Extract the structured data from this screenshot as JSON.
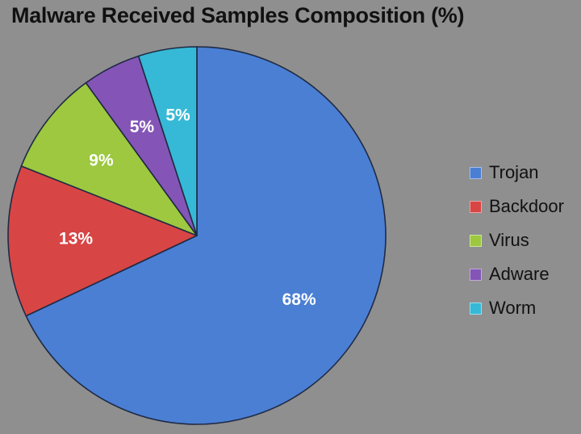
{
  "chart_data": {
    "type": "pie",
    "title": "Malware Received Samples Composition (%)",
    "categories": [
      "Trojan",
      "Backdoor",
      "Virus",
      "Adware",
      "Worm"
    ],
    "values": [
      68,
      13,
      9,
      5,
      5
    ],
    "labels": [
      "68%",
      "13%",
      "9%",
      "5%",
      "5%"
    ],
    "colors": [
      "#4a7fd4",
      "#d84545",
      "#9dc83f",
      "#8455b6",
      "#36b9d6"
    ],
    "legend": "right",
    "start": "top",
    "direction": "clockwise"
  }
}
